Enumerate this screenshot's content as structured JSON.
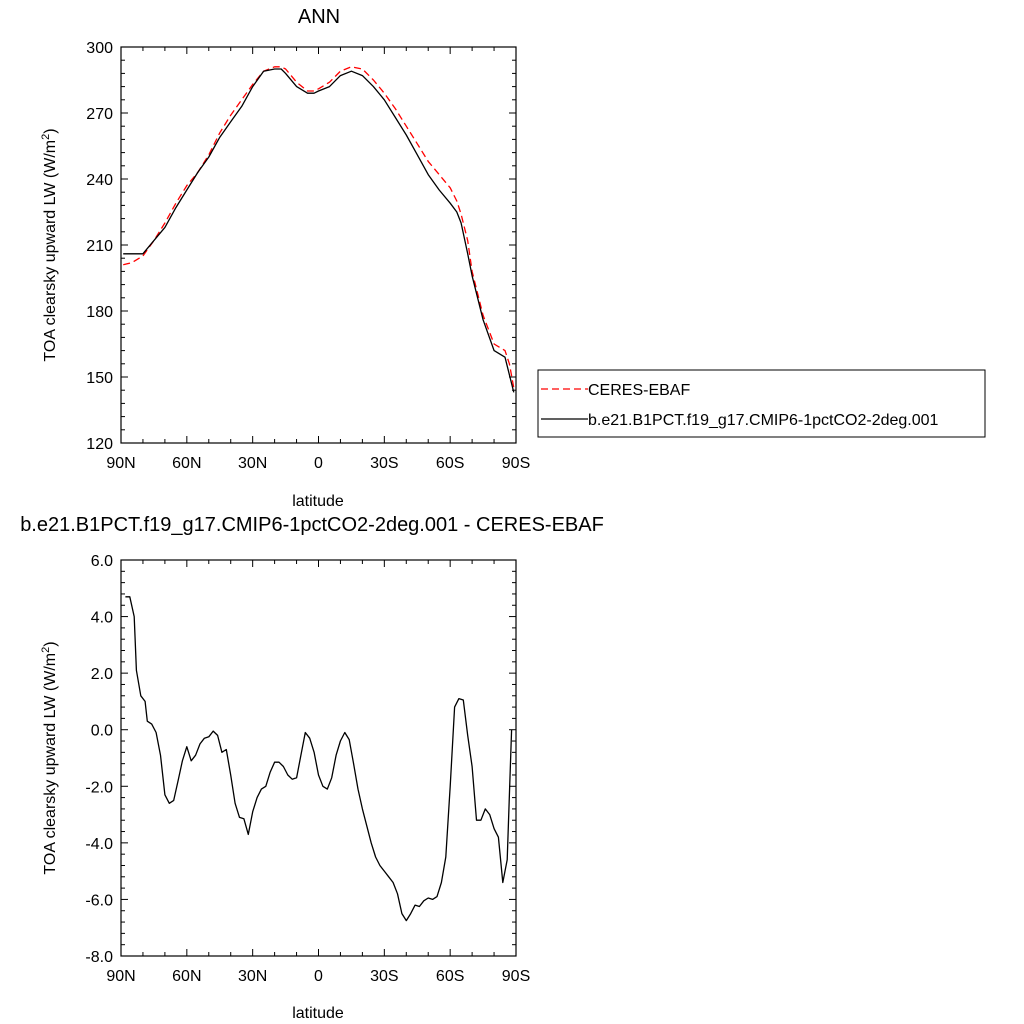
{
  "charts": [
    {
      "title": "ANN",
      "xlabel": "latitude",
      "ylabel_main": "TOA clearsky upward LW (W/m",
      "ylabel_sup": "2",
      "ylabel_end": ")",
      "xlim": [
        -90,
        90
      ],
      "ylim": [
        120,
        300
      ],
      "xticks": [
        {
          "v": -90,
          "label": "90N"
        },
        {
          "v": -60,
          "label": "60N"
        },
        {
          "v": -30,
          "label": "30N"
        },
        {
          "v": 0,
          "label": "0"
        },
        {
          "v": 30,
          "label": "30S"
        },
        {
          "v": 60,
          "label": "60S"
        },
        {
          "v": 90,
          "label": "90S"
        }
      ],
      "yticks": [
        {
          "v": 120,
          "label": "120"
        },
        {
          "v": 150,
          "label": "150"
        },
        {
          "v": 180,
          "label": "180"
        },
        {
          "v": 210,
          "label": "210"
        },
        {
          "v": 240,
          "label": "240"
        },
        {
          "v": 270,
          "label": "270"
        },
        {
          "v": 300,
          "label": "300"
        }
      ]
    },
    {
      "title": "b.e21.B1PCT.f19_g17.CMIP6-1pctCO2-2deg.001 - CERES-EBAF",
      "xlabel": "latitude",
      "ylabel_main": "TOA clearsky upward LW (W/m",
      "ylabel_sup": "2",
      "ylabel_end": ")",
      "xlim": [
        -90,
        90
      ],
      "ylim": [
        -8,
        6
      ],
      "xticks": [
        {
          "v": -90,
          "label": "90N"
        },
        {
          "v": -60,
          "label": "60N"
        },
        {
          "v": -30,
          "label": "30N"
        },
        {
          "v": 0,
          "label": "0"
        },
        {
          "v": 30,
          "label": "30S"
        },
        {
          "v": 60,
          "label": "60S"
        },
        {
          "v": 90,
          "label": "90S"
        }
      ],
      "yticks": [
        {
          "v": -8,
          "label": "-8.0"
        },
        {
          "v": -6,
          "label": "-6.0"
        },
        {
          "v": -4,
          "label": "-4.0"
        },
        {
          "v": -2,
          "label": "-2.0"
        },
        {
          "v": 0,
          "label": "0.0"
        },
        {
          "v": 2,
          "label": "2.0"
        },
        {
          "v": 4,
          "label": "4.0"
        },
        {
          "v": 6,
          "label": "6.0"
        }
      ]
    }
  ],
  "legend": [
    {
      "name": "CERES-EBAF",
      "color": "#ff0000",
      "dash": true
    },
    {
      "name": "b.e21.B1PCT.f19_g17.CMIP6-1pctCO2-2deg.001",
      "color": "#000000",
      "dash": false
    }
  ],
  "chart_data": [
    {
      "type": "line",
      "title": "ANN",
      "xlabel": "latitude",
      "ylabel": "TOA clearsky upward LW (W/m2)",
      "xlim": [
        -90,
        90
      ],
      "ylim": [
        120,
        300
      ],
      "series": [
        {
          "name": "CERES-EBAF",
          "x": [
            -89,
            -85,
            -80,
            -75,
            -70,
            -65,
            -60,
            -55,
            -50,
            -45,
            -40,
            -35,
            -30,
            -25,
            -20,
            -17,
            -15,
            -10,
            -5,
            -2,
            0,
            5,
            10,
            15,
            20,
            25,
            30,
            35,
            40,
            45,
            50,
            55,
            60,
            63,
            65,
            68,
            70,
            75,
            80,
            85,
            87,
            89
          ],
          "y": [
            201,
            202,
            205,
            212,
            220,
            229,
            237,
            243,
            251,
            261,
            269,
            276,
            283,
            289,
            291,
            291,
            290,
            284,
            280,
            280,
            281,
            284,
            289,
            291,
            290,
            285,
            279,
            272,
            264,
            256,
            248,
            242,
            236,
            230,
            224,
            212,
            198,
            178,
            165,
            162,
            156,
            145
          ]
        },
        {
          "name": "b.e21.B1PCT.f19_g17.CMIP6-1pctCO2-2deg.001",
          "x": [
            -89,
            -85,
            -80,
            -75,
            -70,
            -65,
            -60,
            -55,
            -50,
            -45,
            -40,
            -35,
            -30,
            -25,
            -20,
            -17,
            -15,
            -10,
            -5,
            -2,
            0,
            5,
            10,
            15,
            20,
            25,
            30,
            35,
            40,
            45,
            50,
            55,
            60,
            63,
            65,
            68,
            70,
            75,
            80,
            85,
            87,
            89
          ],
          "y": [
            206,
            206,
            206,
            212,
            218,
            227,
            235,
            243,
            250,
            259,
            266,
            273,
            282,
            289,
            290,
            290,
            288,
            282,
            279,
            279,
            280,
            282,
            287,
            289,
            287,
            282,
            276,
            268,
            260,
            251,
            242,
            235,
            229,
            225,
            220,
            206,
            196,
            176,
            162,
            159,
            151,
            143
          ]
        }
      ]
    },
    {
      "type": "line",
      "title": "b.e21.B1PCT.f19_g17.CMIP6-1pctCO2-2deg.001 - CERES-EBAF",
      "xlabel": "latitude",
      "ylabel": "TOA clearsky upward LW (W/m2)",
      "xlim": [
        -90,
        90
      ],
      "ylim": [
        -8,
        6
      ],
      "series": [
        {
          "x": [
            -88,
            -86,
            -84,
            -83,
            -81,
            -79,
            -78,
            -76,
            -74,
            -72,
            -70,
            -68,
            -66,
            -64,
            -62,
            -60,
            -58,
            -56,
            -54,
            -52,
            -50,
            -48,
            -46,
            -44,
            -42,
            -40,
            -38,
            -36,
            -34,
            -32,
            -30,
            -28,
            -26,
            -24,
            -22,
            -20,
            -18,
            -16,
            -14,
            -12,
            -10,
            -8,
            -6,
            -4,
            -2,
            0,
            2,
            4,
            6,
            8,
            10,
            12,
            14,
            16,
            18,
            20,
            22,
            24,
            26,
            28,
            30,
            32,
            34,
            36,
            38,
            40,
            42,
            44,
            46,
            48,
            50,
            52,
            54,
            56,
            58,
            60,
            62,
            64,
            66,
            68,
            70,
            72,
            74,
            76,
            78,
            80,
            82,
            84,
            86,
            88
          ],
          "y": [
            4.7,
            4.7,
            4.0,
            2.1,
            1.2,
            1.0,
            0.3,
            0.2,
            -0.1,
            -0.9,
            -2.3,
            -2.6,
            -2.5,
            -1.8,
            -1.1,
            -0.6,
            -1.1,
            -0.9,
            -0.5,
            -0.3,
            -0.25,
            -0.05,
            -0.2,
            -0.8,
            -0.7,
            -1.6,
            -2.6,
            -3.1,
            -3.15,
            -3.7,
            -2.9,
            -2.4,
            -2.1,
            -2.0,
            -1.5,
            -1.15,
            -1.15,
            -1.3,
            -1.6,
            -1.75,
            -1.7,
            -0.9,
            -0.1,
            -0.3,
            -0.8,
            -1.6,
            -2.0,
            -2.1,
            -1.7,
            -0.9,
            -0.4,
            -0.1,
            -0.35,
            -1.2,
            -2.1,
            -2.8,
            -3.4,
            -4.0,
            -4.5,
            -4.8,
            -5.0,
            -5.2,
            -5.4,
            -5.8,
            -6.5,
            -6.75,
            -6.5,
            -6.2,
            -6.25,
            -6.05,
            -5.95,
            -6.0,
            -5.9,
            -5.4,
            -4.5,
            -2.0,
            0.8,
            1.1,
            1.05,
            -0.2,
            -1.3,
            -3.2,
            -3.2,
            -2.8,
            -3.0,
            -3.5,
            -3.8,
            -5.4,
            -4.6,
            0.0
          ]
        }
      ]
    }
  ]
}
